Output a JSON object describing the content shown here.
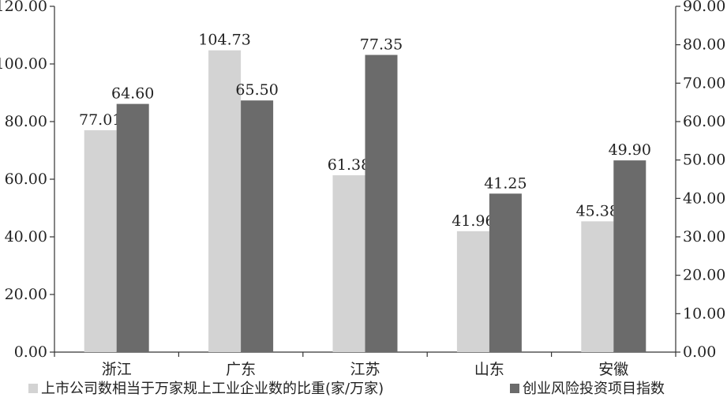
{
  "chart_data": {
    "type": "bar",
    "categories": [
      "浙江",
      "广东",
      "江苏",
      "山东",
      "安徽"
    ],
    "series": [
      {
        "name": "上市公司数相当于万家规上工业企业数的比重(家/万家)",
        "axis": "left",
        "color": "#d3d3d3",
        "values": [
          77.01,
          104.73,
          61.38,
          41.96,
          45.38
        ],
        "labels": [
          "77.01",
          "104.73",
          "61.38",
          "41.96",
          "45.38"
        ]
      },
      {
        "name": "创业风险投资项目指数",
        "axis": "right",
        "color": "#6b6b6b",
        "values": [
          64.6,
          65.5,
          77.35,
          41.25,
          49.9
        ],
        "labels": [
          "64.60",
          "65.50",
          "77.35",
          "41.25",
          "49.90"
        ]
      }
    ],
    "y_left": {
      "lim": [
        0,
        120
      ],
      "ticks": [
        "0.00",
        "20.00",
        "40.00",
        "60.00",
        "80.00",
        "100.00",
        "120.00"
      ]
    },
    "y_right": {
      "lim": [
        0,
        90
      ],
      "ticks": [
        "0.00",
        "10.00",
        "20.00",
        "30.00",
        "40.00",
        "50.00",
        "60.00",
        "70.00",
        "80.00",
        "90.00"
      ]
    },
    "grid": false,
    "legend_position": "bottom"
  }
}
